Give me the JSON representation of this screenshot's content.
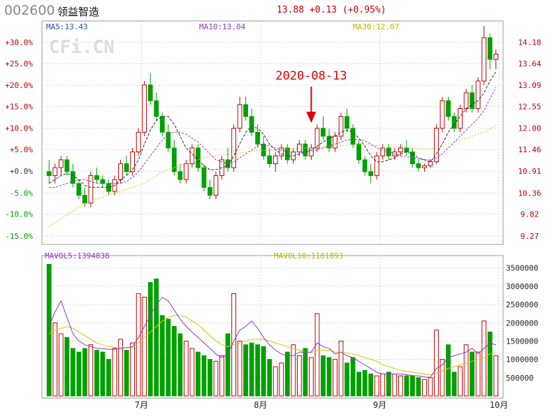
{
  "header": {
    "code": "002600",
    "name": "领益智造",
    "price": "13.88",
    "change": "+0.13",
    "change_pct": "(+0.95%)"
  },
  "watermark": "CFi.CN",
  "colors": {
    "up": "#c00000",
    "down": "#00a000",
    "ma5": "#333333",
    "ma10": "#9933cc",
    "ma30": "#cccc33",
    "frame": "#999999",
    "grid": "#bbbbbb"
  },
  "chart_data": [
    {
      "type": "candlestick",
      "ma_labels": {
        "ma5": "MA5:13.43",
        "ma10": "MA10:13.04",
        "ma30": "MA30:12.07"
      },
      "annotation": {
        "text": "2020-08-13",
        "index": 44
      },
      "left_ticks": [
        "+30.0%",
        "+25.0%",
        "+20.0%",
        "+15.0%",
        "+10.0%",
        "+5.0%",
        "+0.0%",
        "-5.0%",
        "-10.0%",
        "-15.0%"
      ],
      "right_ticks": [
        14.18,
        13.64,
        13.09,
        12.55,
        12.0,
        11.46,
        10.91,
        10.36,
        9.82,
        9.27
      ],
      "ylim": [
        9.0,
        14.6
      ],
      "x_labels": [
        {
          "label": "7月",
          "index": 16
        },
        {
          "label": "8月",
          "index": 36
        },
        {
          "label": "9月",
          "index": 56
        },
        {
          "label": "10月",
          "index": 76
        }
      ],
      "ohlc": [
        [
          10.9,
          11.2,
          10.6,
          10.8
        ],
        [
          10.8,
          11.1,
          10.6,
          11.0
        ],
        [
          11.0,
          11.3,
          10.8,
          11.2
        ],
        [
          11.2,
          11.3,
          10.8,
          10.9
        ],
        [
          10.9,
          11.1,
          10.5,
          10.6
        ],
        [
          10.6,
          10.7,
          10.2,
          10.3
        ],
        [
          10.3,
          10.5,
          10.0,
          10.1
        ],
        [
          10.1,
          10.9,
          10.0,
          10.8
        ],
        [
          10.8,
          11.0,
          10.6,
          10.7
        ],
        [
          10.7,
          10.8,
          10.5,
          10.6
        ],
        [
          10.6,
          10.7,
          10.3,
          10.4
        ],
        [
          10.4,
          10.8,
          10.3,
          10.7
        ],
        [
          10.7,
          11.2,
          10.6,
          11.1
        ],
        [
          11.1,
          11.3,
          10.8,
          10.9
        ],
        [
          10.9,
          11.5,
          10.8,
          11.4
        ],
        [
          11.4,
          12.0,
          11.3,
          11.9
        ],
        [
          11.9,
          13.2,
          11.8,
          13.1
        ],
        [
          13.1,
          13.4,
          12.6,
          12.7
        ],
        [
          12.7,
          12.9,
          12.2,
          12.3
        ],
        [
          12.3,
          12.4,
          11.8,
          11.9
        ],
        [
          11.9,
          12.1,
          11.4,
          11.5
        ],
        [
          11.5,
          11.7,
          10.8,
          10.9
        ],
        [
          10.9,
          11.1,
          10.6,
          10.7
        ],
        [
          10.7,
          11.2,
          10.6,
          11.1
        ],
        [
          11.1,
          11.6,
          11.0,
          11.5
        ],
        [
          11.5,
          11.6,
          10.9,
          11.0
        ],
        [
          11.0,
          11.1,
          10.4,
          10.5
        ],
        [
          10.5,
          10.7,
          10.2,
          10.3
        ],
        [
          10.3,
          10.9,
          10.2,
          10.8
        ],
        [
          10.8,
          11.3,
          10.7,
          11.2
        ],
        [
          11.2,
          11.5,
          10.9,
          11.0
        ],
        [
          11.0,
          12.1,
          10.9,
          12.0
        ],
        [
          12.0,
          12.8,
          11.9,
          12.6
        ],
        [
          12.6,
          12.8,
          12.2,
          12.3
        ],
        [
          12.3,
          12.5,
          11.8,
          11.9
        ],
        [
          11.9,
          12.1,
          11.5,
          11.6
        ],
        [
          11.6,
          11.8,
          11.2,
          11.3
        ],
        [
          11.3,
          11.5,
          11.0,
          11.1
        ],
        [
          11.1,
          11.4,
          10.9,
          11.3
        ],
        [
          11.3,
          11.6,
          11.2,
          11.5
        ],
        [
          11.5,
          11.6,
          11.1,
          11.2
        ],
        [
          11.2,
          11.5,
          11.1,
          11.4
        ],
        [
          11.4,
          11.7,
          11.3,
          11.6
        ],
        [
          11.6,
          11.7,
          11.2,
          11.3
        ],
        [
          11.3,
          11.6,
          11.2,
          11.5
        ],
        [
          11.5,
          12.1,
          11.4,
          12.0
        ],
        [
          12.0,
          12.3,
          11.7,
          11.8
        ],
        [
          11.8,
          12.0,
          11.4,
          11.5
        ],
        [
          11.5,
          11.9,
          11.4,
          11.8
        ],
        [
          11.8,
          12.4,
          11.7,
          12.3
        ],
        [
          12.3,
          12.5,
          11.9,
          12.0
        ],
        [
          12.0,
          12.1,
          11.5,
          11.6
        ],
        [
          11.6,
          11.7,
          11.1,
          11.2
        ],
        [
          11.2,
          11.3,
          10.8,
          10.9
        ],
        [
          10.9,
          11.1,
          10.6,
          10.8
        ],
        [
          10.8,
          11.4,
          10.7,
          11.3
        ],
        [
          11.3,
          11.6,
          11.2,
          11.5
        ],
        [
          11.5,
          11.6,
          11.2,
          11.3
        ],
        [
          11.3,
          11.5,
          11.2,
          11.4
        ],
        [
          11.4,
          11.6,
          11.3,
          11.5
        ],
        [
          11.5,
          11.7,
          11.3,
          11.4
        ],
        [
          11.4,
          11.5,
          11.0,
          11.1
        ],
        [
          11.1,
          11.2,
          10.9,
          11.0
        ],
        [
          11.0,
          11.1,
          10.9,
          11.05
        ],
        [
          11.05,
          11.2,
          11.0,
          11.15
        ],
        [
          11.15,
          12.1,
          11.1,
          12.0
        ],
        [
          12.0,
          12.8,
          11.9,
          12.7
        ],
        [
          12.7,
          12.8,
          12.2,
          12.3
        ],
        [
          12.3,
          12.4,
          11.9,
          12.0
        ],
        [
          12.0,
          12.6,
          11.9,
          12.5
        ],
        [
          12.5,
          13.0,
          12.4,
          12.9
        ],
        [
          12.9,
          13.1,
          12.4,
          12.5
        ],
        [
          12.5,
          13.3,
          12.4,
          13.2
        ],
        [
          13.2,
          14.6,
          13.1,
          14.3
        ],
        [
          14.3,
          14.4,
          13.5,
          13.75
        ],
        [
          13.75,
          14.0,
          13.5,
          13.88
        ]
      ],
      "ma5": [
        10.6,
        10.7,
        10.8,
        10.85,
        10.8,
        10.7,
        10.55,
        10.5,
        10.5,
        10.5,
        10.5,
        10.55,
        10.7,
        10.8,
        10.95,
        11.2,
        11.6,
        11.95,
        12.2,
        12.3,
        12.3,
        12.1,
        11.8,
        11.5,
        11.35,
        11.2,
        11.05,
        10.95,
        10.95,
        11.0,
        11.05,
        11.3,
        11.6,
        11.9,
        12.05,
        12.0,
        11.85,
        11.6,
        11.45,
        11.35,
        11.3,
        11.3,
        11.35,
        11.4,
        11.45,
        11.55,
        11.65,
        11.75,
        11.8,
        11.9,
        11.95,
        11.9,
        11.75,
        11.55,
        11.3,
        11.15,
        11.15,
        11.2,
        11.25,
        11.35,
        11.4,
        11.35,
        11.25,
        11.2,
        11.15,
        11.35,
        11.6,
        11.9,
        12.1,
        12.3,
        12.5,
        12.6,
        12.7,
        12.9,
        13.2,
        13.43
      ],
      "ma10": [
        10.5,
        10.5,
        10.55,
        10.6,
        10.65,
        10.7,
        10.7,
        10.65,
        10.6,
        10.6,
        10.6,
        10.6,
        10.6,
        10.65,
        10.75,
        10.9,
        11.1,
        11.3,
        11.5,
        11.7,
        11.85,
        11.9,
        11.9,
        11.85,
        11.75,
        11.65,
        11.5,
        11.35,
        11.2,
        11.15,
        11.1,
        11.15,
        11.25,
        11.35,
        11.45,
        11.55,
        11.6,
        11.55,
        11.5,
        11.45,
        11.4,
        11.4,
        11.4,
        11.4,
        11.42,
        11.45,
        11.5,
        11.55,
        11.6,
        11.65,
        11.7,
        11.72,
        11.72,
        11.68,
        11.6,
        11.5,
        11.45,
        11.4,
        11.35,
        11.3,
        11.28,
        11.25,
        11.22,
        11.2,
        11.2,
        11.25,
        11.35,
        11.5,
        11.65,
        11.8,
        11.95,
        12.1,
        12.25,
        12.45,
        12.75,
        13.04
      ],
      "ma30": [
        9.5,
        9.6,
        9.7,
        9.8,
        9.9,
        10.0,
        10.1,
        10.15,
        10.2,
        10.25,
        10.3,
        10.35,
        10.4,
        10.45,
        10.5,
        10.55,
        10.6,
        10.7,
        10.8,
        10.9,
        10.95,
        11.0,
        11.05,
        11.1,
        11.15,
        11.2,
        11.25,
        11.28,
        11.3,
        11.32,
        11.34,
        11.36,
        11.38,
        11.4,
        11.42,
        11.43,
        11.44,
        11.45,
        11.46,
        11.47,
        11.48,
        11.49,
        11.5,
        11.5,
        11.51,
        11.52,
        11.53,
        11.54,
        11.55,
        11.56,
        11.57,
        11.58,
        11.58,
        11.58,
        11.57,
        11.56,
        11.55,
        11.54,
        11.53,
        11.52,
        11.51,
        11.5,
        11.49,
        11.48,
        11.48,
        11.5,
        11.55,
        11.6,
        11.65,
        11.7,
        11.75,
        11.8,
        11.85,
        11.9,
        11.98,
        12.07
      ]
    },
    {
      "type": "bar",
      "ma_labels": {
        "mavol5": "MAVOL5:1394838",
        "mavol10": "MAVOL10:1181893"
      },
      "right_ticks": [
        3500000,
        3000000,
        2500000,
        2000000,
        1500000,
        1000000,
        500000
      ],
      "ylim": [
        0,
        3800000
      ],
      "values": [
        3600000,
        2000000,
        1700000,
        1600000,
        1300000,
        1200000,
        1300000,
        1400000,
        1250000,
        1200000,
        1000000,
        1300000,
        1550000,
        1250000,
        1450000,
        2800000,
        2700000,
        3100000,
        3200000,
        2200000,
        2100000,
        1900000,
        1700000,
        1500000,
        1300000,
        1200000,
        1100000,
        1000000,
        950000,
        1100000,
        1700000,
        2800000,
        1500000,
        1400000,
        1450000,
        1400000,
        1350000,
        1000000,
        800000,
        900000,
        1200000,
        1400000,
        1100000,
        1300000,
        1050000,
        2250000,
        1100000,
        1050000,
        1000000,
        1500000,
        900000,
        1050000,
        650000,
        700000,
        600000,
        550000,
        600000,
        650000,
        600000,
        550000,
        550000,
        550000,
        500000,
        450000,
        500000,
        1800000,
        1000000,
        1400000,
        650000,
        800000,
        1400000,
        1200000,
        1200000,
        2050000,
        1750000,
        1100000
      ],
      "mavol5": [
        1900000,
        2300000,
        2600000,
        2150000,
        1700000,
        1500000,
        1400000,
        1350000,
        1300000,
        1300000,
        1270000,
        1280000,
        1300000,
        1320000,
        1340000,
        1600000,
        1900000,
        2200000,
        2500000,
        2700000,
        2600000,
        2350000,
        2100000,
        1900000,
        1750000,
        1600000,
        1450000,
        1300000,
        1150000,
        1050000,
        1150000,
        1500000,
        1800000,
        1900000,
        2050000,
        1850000,
        1600000,
        1400000,
        1250000,
        1150000,
        1100000,
        1100000,
        1200000,
        1200000,
        1200000,
        1450000,
        1350000,
        1300000,
        1150000,
        1200000,
        1100000,
        1050000,
        950000,
        850000,
        750000,
        650000,
        600000,
        600000,
        600000,
        600000,
        580000,
        560000,
        550000,
        520000,
        510000,
        750000,
        850000,
        1050000,
        1100000,
        1150000,
        1200000,
        1300000,
        1150000,
        1300000,
        1450000,
        1394838
      ],
      "mavol10": [
        1700000,
        1800000,
        1850000,
        1900000,
        1850000,
        1750000,
        1650000,
        1550000,
        1450000,
        1400000,
        1350000,
        1330000,
        1320000,
        1320000,
        1330000,
        1450000,
        1600000,
        1750000,
        1900000,
        2050000,
        2150000,
        2200000,
        2200000,
        2150000,
        2050000,
        1950000,
        1800000,
        1650000,
        1500000,
        1400000,
        1350000,
        1400000,
        1450000,
        1500000,
        1550000,
        1550000,
        1550000,
        1500000,
        1450000,
        1400000,
        1350000,
        1300000,
        1250000,
        1200000,
        1180000,
        1250000,
        1250000,
        1250000,
        1200000,
        1200000,
        1180000,
        1150000,
        1100000,
        1050000,
        1000000,
        950000,
        850000,
        800000,
        750000,
        700000,
        680000,
        650000,
        620000,
        600000,
        580000,
        620000,
        680000,
        750000,
        800000,
        850000,
        900000,
        950000,
        1000000,
        1050000,
        1150000,
        1181893
      ]
    }
  ]
}
